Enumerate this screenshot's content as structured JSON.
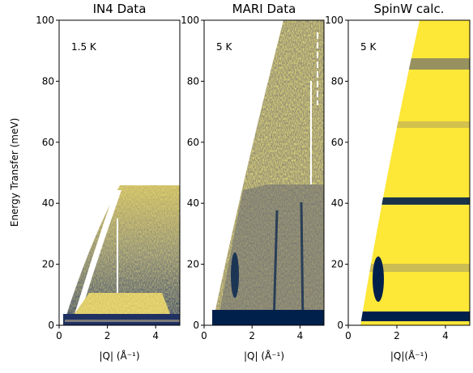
{
  "chart_data": [
    {
      "type": "heatmap",
      "title": "IN4 Data",
      "annotation": "1.5 K",
      "xlabel": "|Q| (Å⁻¹)",
      "ylabel": "Energy Transfer (meV)",
      "xlim": [
        0,
        5
      ],
      "ylim": [
        0,
        100
      ],
      "xticks": [
        0,
        2,
        4
      ],
      "yticks": [
        0,
        20,
        40,
        60,
        80,
        100
      ]
    },
    {
      "type": "heatmap",
      "title": "MARI Data",
      "annotation": "5 K",
      "xlabel": "|Q| (Å⁻¹)",
      "xlim": [
        0,
        5
      ],
      "ylim": [
        0,
        100
      ],
      "xticks": [
        0,
        2,
        4
      ],
      "yticks": [
        0,
        20,
        40,
        60,
        80,
        100
      ]
    },
    {
      "type": "heatmap",
      "title": "SpinW calc.",
      "annotation": "5 K",
      "xlabel": "|Q|(Å⁻¹)",
      "xlim": [
        0,
        5
      ],
      "ylim": [
        0,
        100
      ],
      "xticks": [
        0,
        2,
        4
      ],
      "yticks": [
        0,
        20,
        40,
        60,
        80,
        100
      ]
    }
  ]
}
